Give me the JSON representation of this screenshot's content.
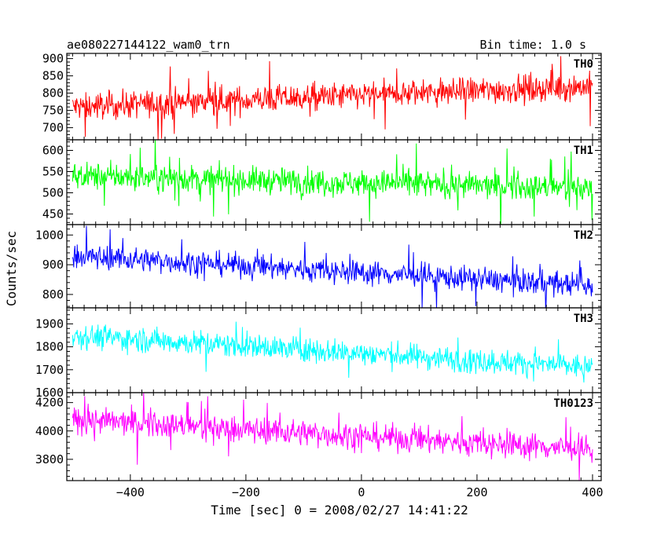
{
  "chart_data": {
    "type": "line",
    "title": "ae080227144122_wam0_trn",
    "subtitle": "Bin time: 1.0 s",
    "xlabel": "Time [sec] 0 = 2008/02/27 14:41:22",
    "ylabel": "Counts/sec",
    "xlim": [
      -510,
      415
    ],
    "x_range": [
      -500,
      400
    ],
    "bin_time": 1.0,
    "x_ticks": [
      -400,
      -200,
      0,
      200,
      400
    ],
    "panels": [
      {
        "name": "TH0",
        "color": "#ff0000",
        "ylim": [
          665,
          915
        ],
        "y_ticks": [
          700,
          750,
          800,
          850,
          900
        ],
        "trend": [
          760,
          820
        ],
        "noise": 28,
        "spike": 95
      },
      {
        "name": "TH1",
        "color": "#00ff00",
        "ylim": [
          425,
          625
        ],
        "y_ticks": [
          450,
          500,
          550,
          600
        ],
        "trend": [
          540,
          510
        ],
        "noise": 22,
        "spike": 80
      },
      {
        "name": "TH2",
        "color": "#0000ff",
        "ylim": [
          755,
          1035
        ],
        "y_ticks": [
          800,
          900,
          1000
        ],
        "trend": [
          930,
          830
        ],
        "noise": 28,
        "spike": 100
      },
      {
        "name": "TH3",
        "color": "#00ffff",
        "ylim": [
          1600,
          1970
        ],
        "y_ticks": [
          1600,
          1700,
          1800,
          1900
        ],
        "trend": [
          1850,
          1710
        ],
        "noise": 38,
        "spike": 130
      },
      {
        "name": "TH0123",
        "color": "#ff00ff",
        "ylim": [
          3650,
          4270
        ],
        "y_ticks": [
          3800,
          4000,
          4200
        ],
        "trend": [
          4080,
          3870
        ],
        "noise": 65,
        "spike": 200
      }
    ]
  }
}
